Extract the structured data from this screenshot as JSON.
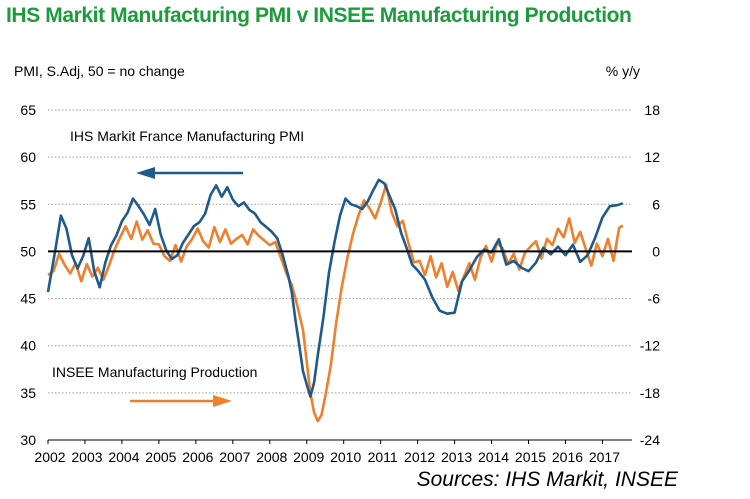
{
  "title": "IHS Markit Manufacturing PMI v INSEE Manufacturing Production",
  "left_axis_label": "PMI, S.Adj, 50 = no change",
  "right_axis_label": "% y/y",
  "sources": "Sources: IHS Markit, INSEE",
  "colors": {
    "title": "#1a9c3a",
    "pmi": "#1f5a8c",
    "production": "#f07f2b",
    "gridline": "#9a9a9a",
    "baseline": "#000000"
  },
  "chart_data": {
    "type": "line",
    "title": "IHS Markit Manufacturing PMI v INSEE Manufacturing Production",
    "xlabel": "",
    "ylabel": "PMI, S.Adj, 50 = no change",
    "y2label": "% y/y",
    "ylim": [
      30,
      65
    ],
    "y2lim": [
      -24,
      18
    ],
    "xlim": [
      2002,
      2017.8
    ],
    "yticks": [
      30,
      35,
      40,
      45,
      50,
      55,
      60,
      65
    ],
    "y2ticks": [
      -24,
      -18,
      -12,
      -6,
      0,
      6,
      12,
      18
    ],
    "xticks": [
      "2002",
      "2003",
      "2004",
      "2005",
      "2006",
      "2007",
      "2008",
      "2009",
      "2010",
      "2011",
      "2012",
      "2013",
      "2014",
      "2015",
      "2016",
      "2017"
    ],
    "grid": true,
    "baseline": 50,
    "annotations": [
      {
        "text": "IHS Markit  France Manufacturing PMI",
        "series": "pmi",
        "arrow": "left"
      },
      {
        "text": "INSEE Manufacturing  Production",
        "series": "production",
        "arrow": "right"
      }
    ],
    "series": [
      {
        "name": "IHS Markit France Manufacturing PMI",
        "axis": "left",
        "x": [
          2002.0,
          2002.2,
          2002.35,
          2002.5,
          2002.65,
          2002.8,
          2002.95,
          2003.1,
          2003.25,
          2003.4,
          2003.55,
          2003.7,
          2003.85,
          2004.0,
          2004.15,
          2004.3,
          2004.45,
          2004.6,
          2004.75,
          2004.9,
          2005.05,
          2005.2,
          2005.35,
          2005.5,
          2005.65,
          2005.8,
          2005.95,
          2006.1,
          2006.25,
          2006.4,
          2006.55,
          2006.7,
          2006.85,
          2007.0,
          2007.15,
          2007.3,
          2007.45,
          2007.6,
          2007.75,
          2007.9,
          2008.05,
          2008.2,
          2008.35,
          2008.5,
          2008.6,
          2008.7,
          2008.8,
          2008.9,
          2009.0,
          2009.1,
          2009.2,
          2009.3,
          2009.45,
          2009.6,
          2009.75,
          2009.9,
          2010.05,
          2010.2,
          2010.35,
          2010.5,
          2010.65,
          2010.8,
          2010.95,
          2011.1,
          2011.25,
          2011.4,
          2011.55,
          2011.7,
          2011.85,
          2012.0,
          2012.2,
          2012.4,
          2012.6,
          2012.8,
          2013.0,
          2013.2,
          2013.4,
          2013.6,
          2013.8,
          2014.0,
          2014.2,
          2014.4,
          2014.6,
          2014.8,
          2015.0,
          2015.2,
          2015.4,
          2015.6,
          2015.8,
          2016.0,
          2016.2,
          2016.4,
          2016.6,
          2016.8,
          2017.0,
          2017.2,
          2017.4,
          2017.55
        ],
        "values": [
          45.7,
          50.2,
          53.8,
          52.4,
          49.6,
          48.2,
          49.5,
          51.4,
          47.9,
          46.2,
          48.8,
          50.6,
          51.7,
          53.2,
          54.1,
          55.6,
          54.8,
          53.9,
          52.8,
          54.5,
          51.8,
          50.1,
          49.2,
          49.6,
          50.9,
          51.8,
          52.7,
          53.1,
          54.0,
          56.0,
          57.0,
          55.8,
          56.8,
          55.5,
          54.8,
          55.2,
          54.4,
          54.0,
          53.1,
          52.6,
          52.1,
          51.4,
          49.6,
          47.4,
          45.6,
          42.6,
          40.0,
          37.3,
          35.9,
          34.6,
          36.1,
          39.0,
          43.0,
          47.7,
          51.0,
          53.8,
          55.6,
          55.0,
          54.8,
          54.5,
          55.3,
          56.5,
          57.6,
          57.2,
          55.8,
          54.4,
          52.0,
          50.4,
          48.6,
          48.0,
          47.0,
          45.1,
          43.7,
          43.4,
          43.5,
          46.8,
          48.0,
          49.4,
          50.2,
          49.9,
          51.3,
          48.6,
          49.0,
          48.3,
          47.9,
          48.8,
          50.4,
          49.7,
          50.5,
          49.6,
          50.7,
          48.9,
          49.6,
          51.4,
          53.6,
          54.8,
          54.9,
          55.1
        ]
      },
      {
        "name": "INSEE Manufacturing Production",
        "axis": "right",
        "x": [
          2002.0,
          2002.15,
          2002.3,
          2002.45,
          2002.6,
          2002.75,
          2002.9,
          2003.05,
          2003.2,
          2003.35,
          2003.5,
          2003.65,
          2003.8,
          2003.95,
          2004.1,
          2004.25,
          2004.4,
          2004.55,
          2004.7,
          2004.85,
          2005.0,
          2005.15,
          2005.3,
          2005.45,
          2005.6,
          2005.75,
          2005.9,
          2006.05,
          2006.2,
          2006.35,
          2006.5,
          2006.65,
          2006.8,
          2006.95,
          2007.1,
          2007.25,
          2007.4,
          2007.55,
          2007.7,
          2007.85,
          2008.0,
          2008.15,
          2008.3,
          2008.45,
          2008.6,
          2008.75,
          2008.9,
          2009.0,
          2009.1,
          2009.2,
          2009.3,
          2009.4,
          2009.5,
          2009.65,
          2009.8,
          2009.95,
          2010.1,
          2010.25,
          2010.4,
          2010.55,
          2010.7,
          2010.85,
          2011.0,
          2011.15,
          2011.3,
          2011.45,
          2011.6,
          2011.75,
          2011.9,
          2012.05,
          2012.2,
          2012.35,
          2012.5,
          2012.65,
          2012.8,
          2012.95,
          2013.1,
          2013.25,
          2013.4,
          2013.55,
          2013.7,
          2013.85,
          2014.0,
          2014.15,
          2014.3,
          2014.45,
          2014.6,
          2014.75,
          2014.9,
          2015.05,
          2015.2,
          2015.35,
          2015.5,
          2015.65,
          2015.8,
          2015.95,
          2016.1,
          2016.25,
          2016.4,
          2016.55,
          2016.7,
          2016.85,
          2017.0,
          2017.15,
          2017.3,
          2017.45,
          2017.55
        ],
        "values": [
          -3.0,
          -2.5,
          -0.3,
          -1.7,
          -2.8,
          -1.5,
          -3.8,
          -1.6,
          -3.2,
          -2.1,
          -3.6,
          -1.8,
          0.2,
          1.8,
          3.2,
          1.6,
          3.8,
          1.5,
          2.7,
          1.0,
          0.9,
          -0.6,
          -1.2,
          0.8,
          -1.3,
          0.6,
          1.6,
          2.9,
          1.3,
          0.5,
          3.1,
          1.2,
          2.8,
          1.0,
          1.6,
          2.1,
          0.9,
          2.8,
          2.0,
          1.4,
          0.8,
          1.2,
          -0.8,
          -2.8,
          -4.3,
          -7.0,
          -10.0,
          -14.0,
          -18.0,
          -20.5,
          -21.6,
          -20.8,
          -18.5,
          -14.5,
          -9.0,
          -4.5,
          -0.8,
          2.2,
          4.6,
          6.5,
          5.5,
          4.2,
          6.2,
          8.5,
          5.0,
          3.2,
          3.9,
          1.1,
          -1.4,
          -1.2,
          -3.0,
          -0.6,
          -3.3,
          -1.5,
          -4.5,
          -2.6,
          -5.0,
          -3.2,
          -1.5,
          -3.6,
          -0.8,
          0.7,
          -1.3,
          1.1,
          0.4,
          -1.6,
          -0.3,
          -2.3,
          -0.2,
          0.6,
          1.3,
          -0.9,
          1.6,
          0.8,
          2.9,
          1.8,
          4.2,
          1.1,
          2.5,
          0.3,
          -1.8,
          1.0,
          -0.6,
          1.6,
          -1.2,
          3.0,
          3.3
        ]
      }
    ]
  }
}
